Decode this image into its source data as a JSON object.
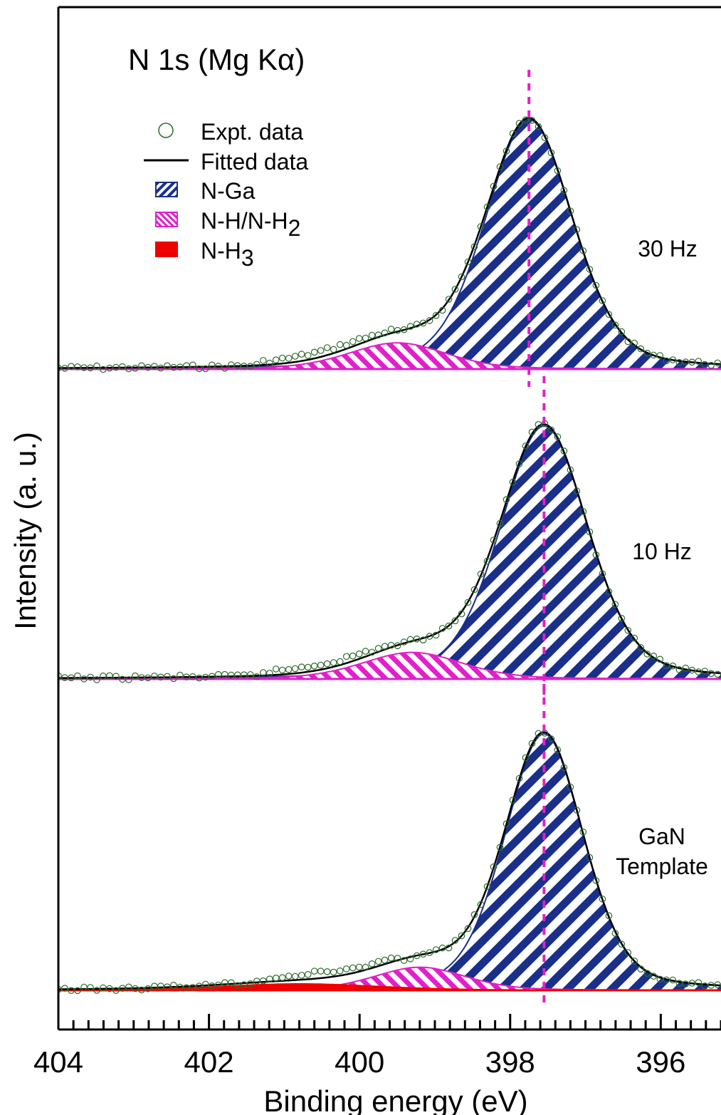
{
  "chart_data": {
    "type": "line",
    "title": "N 1s (Mg Kα)",
    "xlabel": "Binding energy (eV)",
    "ylabel": "Intensity (a. u.)",
    "x_reversed": true,
    "xlim": [
      404,
      395.2
    ],
    "x_tick_labels": [
      "404",
      "402",
      "400",
      "398",
      "396"
    ],
    "x_major_ticks": [
      404,
      402,
      400,
      398,
      396
    ],
    "x_minor_step": 0.2,
    "legend": {
      "position": "top-left",
      "entries": [
        {
          "label": "Expt. data",
          "marker": "open-circle",
          "color": "#2e6b2e"
        },
        {
          "label": "Fitted data",
          "marker": "line",
          "color": "#000000"
        },
        {
          "label": "N-Ga",
          "marker": "hatch-right",
          "color": "#1a2f8a"
        },
        {
          "label": "N-H/N-H",
          "sub": "2",
          "marker": "hatch-left",
          "color": "#e020c8"
        },
        {
          "label": "N-H",
          "sub": "3",
          "marker": "solid",
          "color": "#ee0000"
        }
      ]
    },
    "colors": {
      "n_ga": "#1a2f8a",
      "n_h": "#e020c8",
      "n_h3": "#ee0000",
      "expt": "#2e6b2e",
      "fit": "#000000",
      "peak_marker": "#e020c8"
    },
    "series": [
      {
        "name": "30 Hz",
        "label_lines": [
          "30 Hz"
        ],
        "components": [
          {
            "name": "N-Ga",
            "center": 397.75,
            "height": 1.0,
            "width": 0.72
          },
          {
            "name": "N-H/N-H2",
            "center": 399.5,
            "height": 0.105,
            "width": 0.8
          }
        ],
        "peak_position": 397.75
      },
      {
        "name": "10 Hz",
        "label_lines": [
          "10 Hz"
        ],
        "components": [
          {
            "name": "N-Ga",
            "center": 397.55,
            "height": 1.0,
            "width": 0.72
          },
          {
            "name": "N-H/N-H2",
            "center": 399.3,
            "height": 0.105,
            "width": 0.82
          }
        ],
        "peak_position": 397.55
      },
      {
        "name": "GaN Template",
        "label_lines": [
          "GaN",
          "Template"
        ],
        "components": [
          {
            "name": "N-Ga",
            "center": 397.55,
            "height": 1.0,
            "width": 0.65
          },
          {
            "name": "N-H/N-H2",
            "center": 399.2,
            "height": 0.09,
            "width": 0.75
          },
          {
            "name": "N-H3",
            "center": 400.8,
            "height": 0.025,
            "width": 1.3
          }
        ],
        "peak_position": 397.55
      }
    ]
  }
}
